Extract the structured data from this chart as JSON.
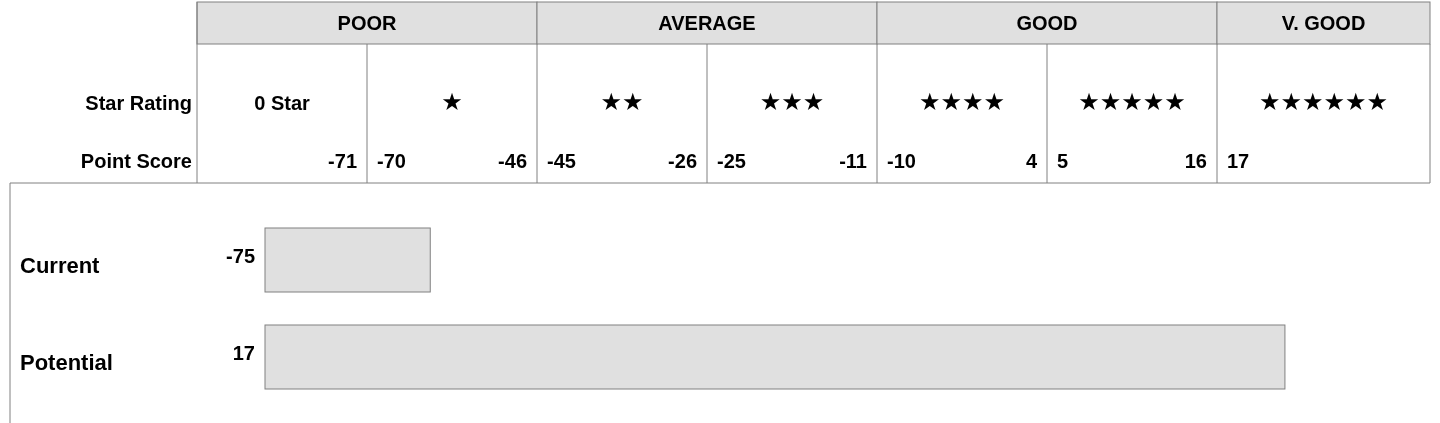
{
  "chart_data": {
    "type": "other",
    "categories": [
      "Current",
      "Potential"
    ],
    "values": [
      -75,
      17
    ],
    "value_labels": [
      "-75",
      "17"
    ],
    "color": "#e0e0e0",
    "annotations": [
      "POOR",
      "AVERAGE",
      "GOOD",
      "V. GOOD",
      "Star Rating",
      "0 Star",
      "★",
      "★★",
      "★★★",
      "★★★★",
      "★★★★★",
      "★★★★★★",
      "Point Score",
      "-71",
      "-70",
      "-46",
      "-45",
      "-26",
      "-25",
      "-11",
      "-10",
      "4",
      "5",
      "16",
      "17"
    ]
  }
}
